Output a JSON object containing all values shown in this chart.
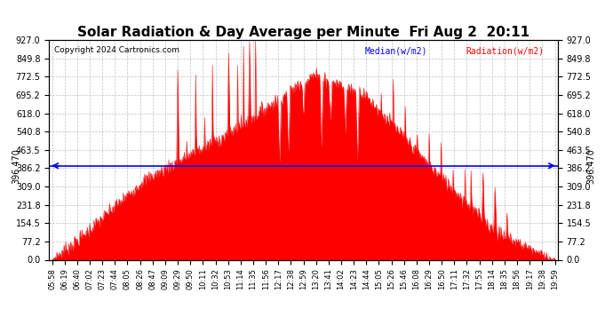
{
  "title": "Solar Radiation & Day Average per Minute  Fri Aug 2  20:11",
  "copyright": "Copyright 2024 Cartronics.com",
  "median_value": 396.47,
  "median_label": "396.470",
  "y_max": 927.0,
  "y_min": 0.0,
  "y_ticks": [
    0.0,
    77.2,
    154.5,
    231.8,
    309.0,
    386.2,
    463.5,
    540.8,
    618.0,
    695.2,
    772.5,
    849.8,
    927.0
  ],
  "bar_color": "#FF0000",
  "median_color": "#0000FF",
  "background_color": "#FFFFFF",
  "grid_color": "#BBBBBB",
  "title_fontsize": 11,
  "legend_median_color": "#0000FF",
  "legend_radiation_color": "#FF0000",
  "x_tick_labels": [
    "05:58",
    "06:19",
    "06:40",
    "07:02",
    "07:23",
    "07:44",
    "08:05",
    "08:26",
    "08:47",
    "09:09",
    "09:29",
    "09:50",
    "10:11",
    "10:32",
    "10:53",
    "11:14",
    "11:35",
    "11:56",
    "12:17",
    "12:38",
    "12:59",
    "13:20",
    "13:41",
    "14:02",
    "14:23",
    "14:44",
    "15:05",
    "15:26",
    "15:46",
    "16:08",
    "16:29",
    "16:50",
    "17:11",
    "17:32",
    "17:53",
    "18:14",
    "18:35",
    "18:56",
    "19:17",
    "19:38",
    "19:59"
  ]
}
